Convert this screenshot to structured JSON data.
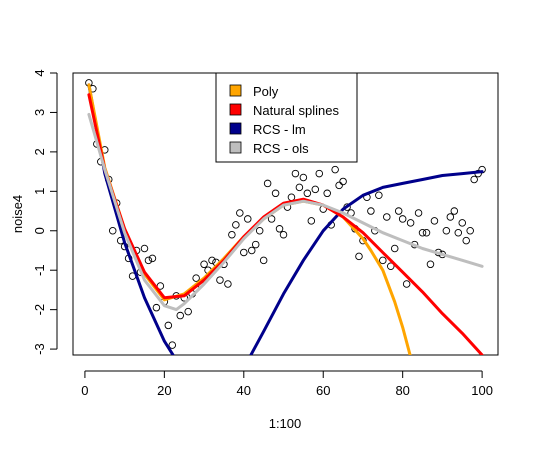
{
  "chart_data": {
    "type": "scatter",
    "title": "",
    "xlabel": "1:100",
    "ylabel": "noise4",
    "xlim": [
      -3,
      104
    ],
    "ylim": [
      -3.15,
      4.0
    ],
    "x_ticks": [
      0,
      20,
      40,
      60,
      80,
      100
    ],
    "y_ticks": [
      -3,
      -2,
      -1,
      0,
      1,
      2,
      3,
      4
    ],
    "legend_position": "top-center",
    "grid": false,
    "points": {
      "name": "",
      "x": [
        1,
        2,
        3,
        4,
        5,
        6,
        7,
        8,
        9,
        10,
        11,
        12,
        13,
        14,
        15,
        16,
        17,
        18,
        19,
        20,
        21,
        22,
        23,
        24,
        25,
        26,
        27,
        28,
        29,
        30,
        31,
        32,
        33,
        34,
        35,
        36,
        37,
        38,
        39,
        40,
        41,
        42,
        43,
        44,
        45,
        46,
        47,
        48,
        49,
        50,
        51,
        52,
        53,
        54,
        55,
        56,
        57,
        58,
        59,
        60,
        61,
        62,
        63,
        64,
        65,
        66,
        67,
        68,
        69,
        70,
        71,
        72,
        73,
        74,
        75,
        76,
        77,
        78,
        79,
        80,
        81,
        82,
        83,
        84,
        85,
        86,
        87,
        88,
        89,
        90,
        91,
        92,
        93,
        94,
        95,
        96,
        97,
        98,
        99,
        100
      ],
      "y": [
        3.75,
        3.6,
        2.2,
        1.75,
        2.05,
        1.3,
        0.0,
        0.7,
        -0.25,
        -0.4,
        -0.7,
        -1.15,
        -0.5,
        -1.05,
        -0.45,
        -0.75,
        -0.7,
        -1.95,
        -1.4,
        -1.8,
        -2.4,
        -2.9,
        -1.65,
        -2.15,
        -1.7,
        -2.05,
        -1.6,
        -1.2,
        -1.35,
        -0.85,
        -1.0,
        -0.75,
        -0.8,
        -1.25,
        -0.85,
        -1.35,
        -0.1,
        0.15,
        0.45,
        -0.55,
        0.3,
        -0.5,
        -0.35,
        0.0,
        -0.75,
        1.2,
        0.3,
        0.95,
        0.05,
        -0.1,
        0.6,
        0.85,
        1.45,
        1.1,
        1.35,
        0.95,
        0.25,
        1.05,
        1.45,
        0.55,
        0.95,
        0.15,
        1.55,
        1.15,
        1.25,
        0.6,
        0.45,
        0.05,
        -0.65,
        -0.25,
        0.85,
        0.5,
        0.0,
        0.9,
        -0.75,
        0.35,
        -0.9,
        -0.45,
        0.5,
        0.3,
        -1.35,
        0.2,
        -0.35,
        0.45,
        -0.05,
        -0.05,
        -0.85,
        0.25,
        -0.55,
        -0.6,
        0.0,
        0.35,
        0.5,
        -0.05,
        0.2,
        -0.25,
        0.0,
        1.3,
        1.45,
        1.55
      ]
    },
    "series": [
      {
        "name": "Poly",
        "color": "#FFA500",
        "x": [
          1,
          5,
          10,
          15,
          20,
          25,
          30,
          35,
          40,
          45,
          50,
          55,
          60,
          65,
          70,
          72,
          75,
          78,
          80,
          82
        ],
        "y": [
          3.7,
          1.6,
          0.05,
          -1.1,
          -1.75,
          -1.6,
          -1.2,
          -0.7,
          -0.15,
          0.3,
          0.65,
          0.75,
          0.65,
          0.35,
          -0.2,
          -0.5,
          -1.0,
          -1.8,
          -2.45,
          -3.2
        ]
      },
      {
        "name": "Natural splines",
        "color": "#FF0000",
        "x": [
          1,
          5,
          10,
          15,
          20,
          25,
          30,
          35,
          40,
          45,
          50,
          55,
          60,
          65,
          70,
          75,
          80,
          85,
          90,
          95,
          100
        ],
        "y": [
          3.45,
          1.55,
          0.05,
          -1.05,
          -1.7,
          -1.65,
          -1.25,
          -0.75,
          -0.15,
          0.35,
          0.7,
          0.8,
          0.65,
          0.35,
          -0.05,
          -0.55,
          -1.05,
          -1.55,
          -2.1,
          -2.6,
          -3.15
        ]
      },
      {
        "name": "RCS - lm",
        "color": "#00008B",
        "x": [
          1,
          5,
          10,
          15,
          20,
          22.5,
          41.5,
          45,
          50,
          55,
          60,
          65,
          70,
          75,
          80,
          85,
          90,
          95,
          100
        ],
        "y": [
          3.7,
          1.45,
          -0.3,
          -1.7,
          -2.8,
          -3.2,
          -3.2,
          -2.55,
          -1.6,
          -0.75,
          0.0,
          0.55,
          0.9,
          1.1,
          1.2,
          1.3,
          1.4,
          1.45,
          1.5
        ]
      },
      {
        "name": "RCS - ols",
        "color": "#BEBEBE",
        "x": [
          1,
          5,
          10,
          15,
          20,
          23,
          25,
          30,
          35,
          40,
          45,
          50,
          55,
          60,
          65,
          70,
          75,
          80,
          85,
          90,
          95,
          100
        ],
        "y": [
          2.95,
          1.55,
          -0.05,
          -1.25,
          -1.9,
          -2.0,
          -1.85,
          -1.35,
          -0.8,
          -0.2,
          0.3,
          0.65,
          0.75,
          0.65,
          0.45,
          0.2,
          -0.05,
          -0.25,
          -0.45,
          -0.6,
          -0.75,
          -0.9
        ]
      }
    ]
  }
}
